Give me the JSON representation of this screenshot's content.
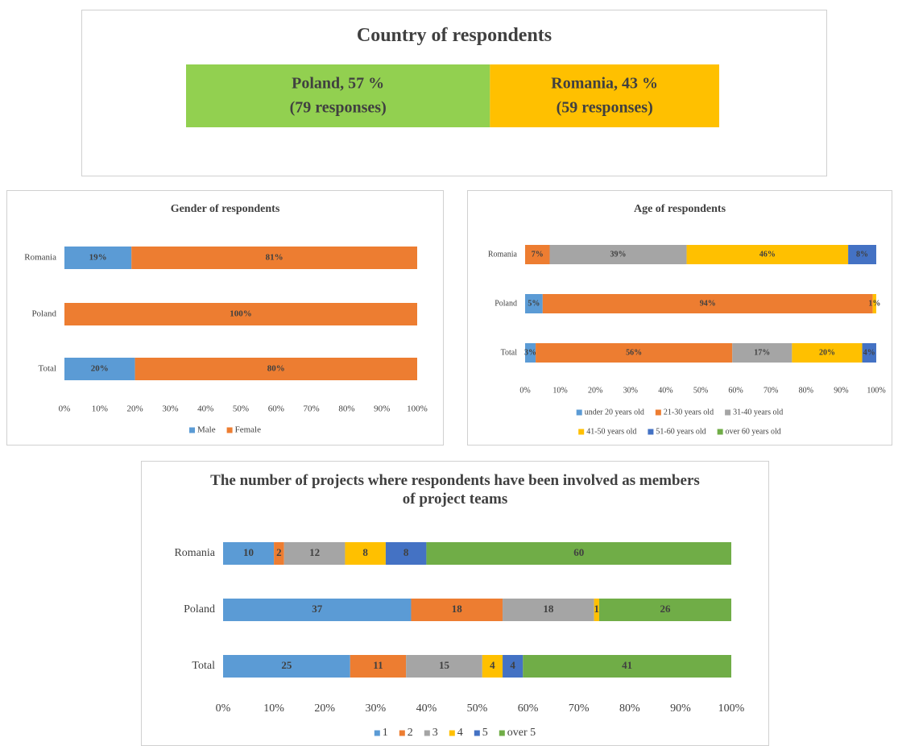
{
  "chart_data": [
    {
      "type": "stacked_bar",
      "title": "Country of respondents",
      "categories": [
        null
      ],
      "series": [
        {
          "name": "Poland",
          "color": "#92d050",
          "values": [
            57
          ],
          "value_labels": [
            "Poland, 57 %"
          ],
          "responses": [
            "(79 responses)"
          ]
        },
        {
          "name": "Romania",
          "color": "#ffc000",
          "values": [
            43
          ],
          "value_labels": [
            "Romania, 43 %"
          ],
          "responses": [
            "(59 responses)"
          ]
        }
      ],
      "legend": false
    },
    {
      "type": "stacked_bar",
      "title": "Gender of respondents",
      "categories": [
        "Romania",
        "Poland",
        "Total"
      ],
      "series": [
        {
          "name": "Male",
          "color": "#5b9bd5",
          "values": [
            19,
            0,
            20
          ],
          "value_labels": [
            "19%",
            null,
            "20%"
          ]
        },
        {
          "name": "Female",
          "color": "#ed7d31",
          "values": [
            81,
            100,
            80
          ],
          "value_labels": [
            "81%",
            "100%",
            "80%"
          ]
        }
      ],
      "xlim": [
        0,
        100
      ],
      "xticks": [
        {
          "value": 0,
          "label": "0%"
        },
        {
          "value": 10,
          "label": "10%"
        },
        {
          "value": 20,
          "label": "20%"
        },
        {
          "value": 30,
          "label": "30%"
        },
        {
          "value": 40,
          "label": "40%"
        },
        {
          "value": 50,
          "label": "50%"
        },
        {
          "value": 60,
          "label": "60%"
        },
        {
          "value": 70,
          "label": "70%"
        },
        {
          "value": 80,
          "label": "80%"
        },
        {
          "value": 90,
          "label": "90%"
        },
        {
          "value": 100,
          "label": "100%"
        }
      ],
      "legend": "bottom"
    },
    {
      "type": "stacked_bar",
      "title": "Age of respondents",
      "categories": [
        "Romania",
        "Poland",
        "Total"
      ],
      "series": [
        {
          "name": "under 20 years old",
          "color": "#5b9bd5",
          "values": [
            0,
            5,
            3
          ],
          "value_labels": [
            null,
            "5%",
            "3%"
          ]
        },
        {
          "name": "21-30 years old",
          "color": "#ed7d31",
          "values": [
            7,
            94,
            56
          ],
          "value_labels": [
            "7%",
            "94%",
            "56%"
          ]
        },
        {
          "name": "31-40 years old",
          "color": "#a5a5a5",
          "values": [
            39,
            0,
            17
          ],
          "value_labels": [
            "39%",
            null,
            "17%"
          ]
        },
        {
          "name": "41-50 years old",
          "color": "#ffc000",
          "values": [
            46,
            1,
            20
          ],
          "value_labels": [
            "46%",
            "1%",
            "20%"
          ]
        },
        {
          "name": "51-60 years old",
          "color": "#4472c4",
          "values": [
            8,
            0,
            4
          ],
          "value_labels": [
            "8%",
            null,
            "4%"
          ]
        },
        {
          "name": "over 60 years old",
          "color": "#70ad47",
          "values": [
            0,
            0,
            0
          ],
          "value_labels": [
            null,
            null,
            null
          ]
        }
      ],
      "xlim": [
        0,
        100
      ],
      "xticks": [
        {
          "value": 0,
          "label": "0%"
        },
        {
          "value": 10,
          "label": "10%"
        },
        {
          "value": 20,
          "label": "20%"
        },
        {
          "value": 30,
          "label": "30%"
        },
        {
          "value": 40,
          "label": "40%"
        },
        {
          "value": 50,
          "label": "50%"
        },
        {
          "value": 60,
          "label": "60%"
        },
        {
          "value": 70,
          "label": "70%"
        },
        {
          "value": 80,
          "label": "80%"
        },
        {
          "value": 90,
          "label": "90%"
        },
        {
          "value": 100,
          "label": "100%"
        }
      ],
      "legend": "bottom"
    },
    {
      "type": "stacked_bar",
      "title": "The number of projects where respondents have been involved as members of project teams",
      "categories": [
        "Romania",
        "Poland",
        "Total"
      ],
      "series": [
        {
          "name": "1",
          "color": "#5b9bd5",
          "values": [
            10,
            37,
            25
          ]
        },
        {
          "name": "2",
          "color": "#ed7d31",
          "values": [
            2,
            18,
            11
          ]
        },
        {
          "name": "3",
          "color": "#a5a5a5",
          "values": [
            12,
            18,
            15
          ]
        },
        {
          "name": "4",
          "color": "#ffc000",
          "values": [
            8,
            1,
            4
          ]
        },
        {
          "name": "5",
          "color": "#4472c4",
          "values": [
            8,
            0,
            4
          ]
        },
        {
          "name": "over 5",
          "color": "#70ad47",
          "values": [
            60,
            26,
            41
          ]
        }
      ],
      "xlim": [
        0,
        100
      ],
      "xticks": [
        {
          "value": 0,
          "label": "0%"
        },
        {
          "value": 10,
          "label": "10%"
        },
        {
          "value": 20,
          "label": "20%"
        },
        {
          "value": 30,
          "label": "30%"
        },
        {
          "value": 40,
          "label": "40%"
        },
        {
          "value": 50,
          "label": "50%"
        },
        {
          "value": 60,
          "label": "60%"
        },
        {
          "value": 70,
          "label": "70%"
        },
        {
          "value": 80,
          "label": "80%"
        },
        {
          "value": 90,
          "label": "90%"
        },
        {
          "value": 100,
          "label": "100%"
        }
      ],
      "legend": "bottom"
    }
  ]
}
